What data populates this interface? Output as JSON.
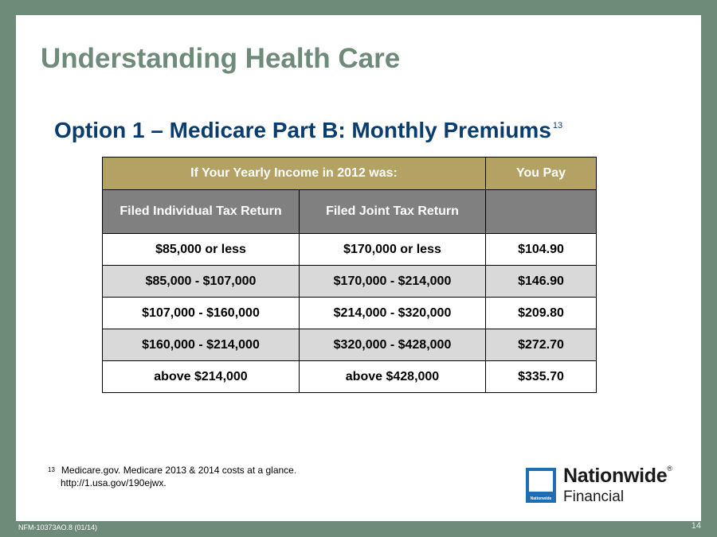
{
  "slide": {
    "title": "Understanding Health Care",
    "subtitle": "Option 1 – Medicare Part B: Monthly Premiums",
    "subtitle_ref": "13"
  },
  "table": {
    "header_income": "If Your Yearly Income in 2012 was:",
    "header_pay": "You Pay",
    "col_individual": "Filed Individual Tax Return",
    "col_joint": "Filed Joint Tax Return",
    "rows": [
      {
        "individual": "$85,000 or less",
        "joint": "$170,000 or less",
        "pay": "$104.90"
      },
      {
        "individual": "$85,000 - $107,000",
        "joint": "$170,000 - $214,000",
        "pay": "$146.90"
      },
      {
        "individual": "$107,000 - $160,000",
        "joint": "$214,000 - $320,000",
        "pay": "$209.80"
      },
      {
        "individual": "$160,000 - $214,000",
        "joint": "$320,000 - $428,000",
        "pay": "$272.70"
      },
      {
        "individual": "above $214,000",
        "joint": "above $428,000",
        "pay": "$335.70"
      }
    ]
  },
  "footnote": {
    "number": "13",
    "line1": "Medicare.gov. Medicare 2013 & 2014 costs at a glance.",
    "line2": "http://1.usa.gov/190ejwx."
  },
  "logo": {
    "name": "Nationwide",
    "reg": "®",
    "sub": "Financial",
    "badge_text": "Nationwide"
  },
  "page_number": "14",
  "doc_id": "NFM-10373AO.8 (01/14)",
  "colors": {
    "frame": "#6e8a78",
    "title": "#6e8a78",
    "subtitle": "#0b3c6e",
    "header_gold": "#b3a264",
    "header_gray": "#808080",
    "row_shade": "#d9d9d9"
  }
}
